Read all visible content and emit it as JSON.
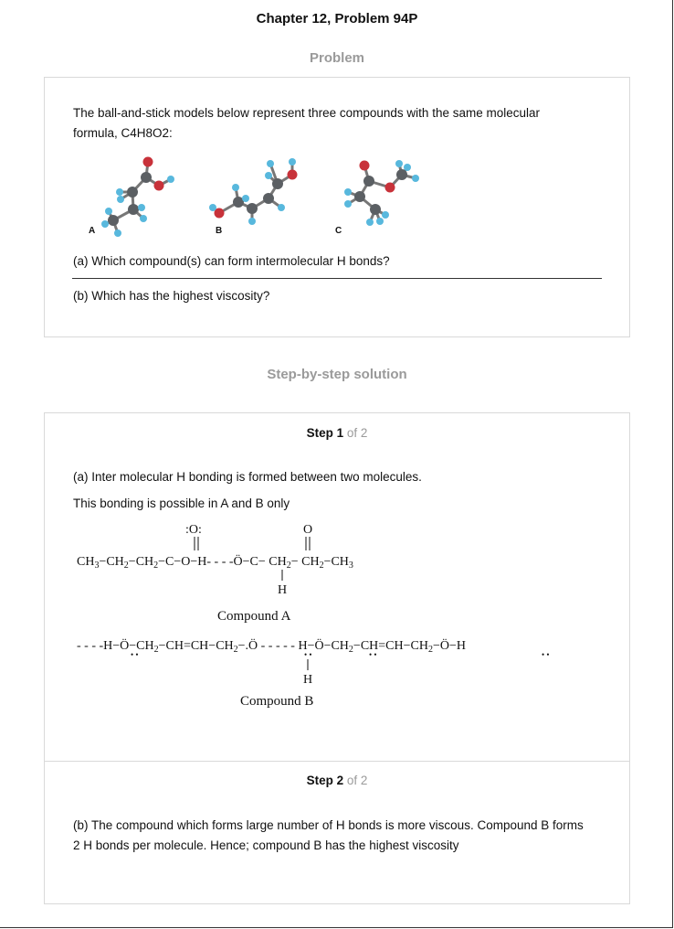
{
  "page": {
    "title": "Chapter 12, Problem 94P"
  },
  "problem": {
    "heading": "Problem",
    "intro": "The ball-and-stick models below represent three compounds with the same molecular formula, C4H8O2:",
    "labels": [
      "A",
      "B",
      "C"
    ],
    "question_a": "(a) Which compound(s) can form intermolecular H bonds?",
    "question_b": "(b) Which has the highest viscosity?"
  },
  "solution": {
    "heading": "Step-by-step solution",
    "step1": {
      "label": "Step 1",
      "of": " of 2",
      "line1": "(a) Inter molecular H bonding is formed between two molecules.",
      "line2": "This bonding is possible in A and B only",
      "caption_a": "Compound A",
      "caption_b": "Compound B"
    },
    "step2": {
      "label": "Step 2",
      "of": " of 2",
      "text": "(b) The compound which forms large number of H bonds is more viscous. Compound B forms 2 H bonds per molecule. Hence; compound B has the highest viscosity"
    }
  },
  "colors": {
    "carbon": "#5b5f63",
    "oxygen": "#c8323a",
    "hydrogen": "#58b8dd",
    "heading_gray": "#9a9a9a"
  }
}
